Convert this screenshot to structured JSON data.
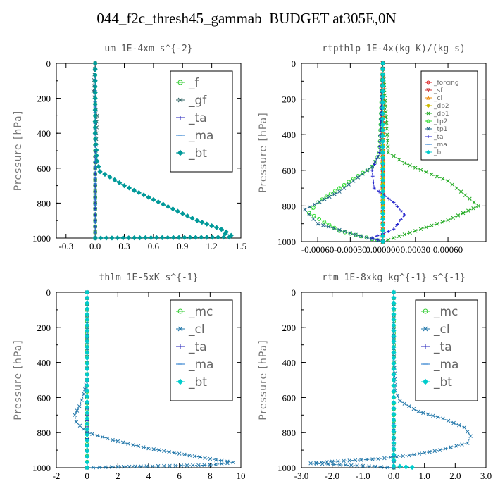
{
  "title": "044_f2c_thresh45_gammab  BUDGET at305E,0N",
  "chart_data": [
    {
      "type": "line",
      "title": "um  1E-4xm s^{-2}",
      "ylabel": "Pressure [hPa]",
      "xlim": [
        -0.4,
        1.5
      ],
      "ylim": [
        1000,
        0
      ],
      "x_ticks": [
        "-0.3",
        "0.0",
        "0.3",
        "0.6",
        "0.9",
        "1.2",
        "1.5"
      ],
      "x_tick_values": [
        -0.3,
        0,
        0.3,
        0.6,
        0.9,
        1.2,
        1.5
      ],
      "y_ticks": [
        "0",
        "200",
        "400",
        "600",
        "800",
        "1000"
      ],
      "y_tick_values": [
        0,
        200,
        400,
        600,
        800,
        1000
      ],
      "legend_position": "top-right",
      "legend_size": "large",
      "series": [
        {
          "name": "_f",
          "color": "#33cc33",
          "marker": "circle",
          "x": [
            0,
            0,
            0,
            0,
            0,
            0
          ],
          "y": [
            0,
            200,
            400,
            600,
            800,
            1000
          ]
        },
        {
          "name": "_gf",
          "color": "#336666",
          "marker": "x",
          "x": [
            0,
            -0.02,
            0.02,
            0,
            0
          ],
          "y": [
            0,
            160,
            300,
            600,
            1000
          ]
        },
        {
          "name": "_ta",
          "color": "#2222bb",
          "marker": "plus",
          "x": [
            0,
            0,
            0,
            0
          ],
          "y": [
            0,
            500,
            900,
            1000
          ]
        },
        {
          "name": "_ma",
          "color": "#2277cc",
          "marker": "dash",
          "x": [
            0,
            0,
            0
          ],
          "y": [
            0,
            500,
            1000
          ]
        },
        {
          "name": "_bt",
          "color": "#009999",
          "marker": "diamond",
          "x": [
            0.0,
            0.0,
            0.0,
            0.02,
            0.05,
            0.15,
            0.3,
            0.45,
            0.6,
            0.75,
            0.9,
            1.05,
            1.2,
            1.3,
            1.35,
            1.34,
            1.4,
            1.38,
            0.0
          ],
          "y": [
            0,
            200,
            400,
            560,
            620,
            650,
            700,
            740,
            780,
            820,
            860,
            900,
            930,
            950,
            965,
            975,
            985,
            995,
            1000
          ]
        }
      ]
    },
    {
      "type": "line",
      "title": "rtpthlp  1E-4x(kg K)/(kg s)",
      "ylabel": "Pressure [hPa]",
      "xlim": [
        -0.00075,
        0.00095
      ],
      "ylim": [
        1000,
        0
      ],
      "x_ticks": [
        "-0.00060",
        "-0.00030",
        "0.000000",
        "0.00030",
        "0.00060"
      ],
      "x_tick_values": [
        -0.0006,
        -0.0003,
        0,
        0.0003,
        0.0006
      ],
      "y_ticks": [
        "0",
        "200",
        "400",
        "600",
        "800",
        "1000"
      ],
      "y_tick_values": [
        0,
        200,
        400,
        600,
        800,
        1000
      ],
      "legend_position": "top-right",
      "legend_size": "small",
      "series": [
        {
          "name": "_forcing",
          "color": "#dd2222",
          "marker": "circle",
          "x": [
            0,
            0,
            0,
            0,
            0,
            0
          ],
          "y": [
            0,
            200,
            400,
            600,
            800,
            1000
          ]
        },
        {
          "name": "_sf",
          "color": "#cc3333",
          "marker": "down",
          "x": [
            0,
            0,
            0,
            0
          ],
          "y": [
            0,
            400,
            800,
            1000
          ]
        },
        {
          "name": "_cl",
          "color": "#ee8800",
          "marker": "up",
          "x": [
            0,
            0,
            0,
            0
          ],
          "y": [
            0,
            400,
            800,
            1000
          ]
        },
        {
          "name": "_dp2",
          "color": "#ccbb00",
          "marker": "diamond",
          "x": [
            0,
            0,
            0,
            0
          ],
          "y": [
            0,
            400,
            800,
            1000
          ]
        },
        {
          "name": "_dp1",
          "color": "#22aa22",
          "marker": "x",
          "x": [
            0,
            3e-05,
            5e-05,
            0.0002,
            0.0006,
            0.00088,
            0.0006,
            0.0003,
            0.0001,
            0
          ],
          "y": [
            0,
            300,
            500,
            560,
            660,
            800,
            880,
            940,
            980,
            1000
          ]
        },
        {
          "name": "_tp2",
          "color": "#33dd33",
          "marker": "circle",
          "x": [
            0,
            -3e-05,
            -0.0001,
            -0.0004,
            -0.0006,
            -0.00068,
            -0.0004,
            -0.0001,
            0
          ],
          "y": [
            0,
            500,
            580,
            700,
            780,
            840,
            940,
            985,
            1000
          ]
        },
        {
          "name": "_tp1",
          "color": "#226688",
          "marker": "x",
          "x": [
            0,
            -2e-05,
            -0.0001,
            -0.0004,
            -0.00072,
            -0.0006,
            -0.0002,
            0
          ],
          "y": [
            0,
            500,
            580,
            720,
            820,
            900,
            970,
            1000
          ]
        },
        {
          "name": "_ta",
          "color": "#2222cc",
          "marker": "plus",
          "x": [
            0,
            -3e-05,
            -0.0001,
            -8e-05,
            0.0001,
            0.0002,
            0.0001,
            -0.0001,
            0
          ],
          "y": [
            0,
            500,
            600,
            700,
            780,
            850,
            930,
            980,
            1000
          ]
        },
        {
          "name": "_ma",
          "color": "#2277cc",
          "marker": "dash",
          "x": [
            0,
            0,
            0
          ],
          "y": [
            0,
            500,
            1000
          ]
        },
        {
          "name": "_bt",
          "color": "#00cccc",
          "marker": "diamond",
          "x": [
            0,
            0,
            0
          ],
          "y": [
            0,
            500,
            1000
          ]
        }
      ]
    },
    {
      "type": "line",
      "title": "thlm  1E-5xK s^{-1}",
      "ylabel": "Pressure [hPa]",
      "xlim": [
        -2,
        10
      ],
      "ylim": [
        1000,
        0
      ],
      "x_ticks": [
        "-2",
        "0",
        "2",
        "4",
        "6",
        "8",
        "10"
      ],
      "x_tick_values": [
        -2,
        0,
        2,
        4,
        6,
        8,
        10
      ],
      "y_ticks": [
        "0",
        "200",
        "400",
        "600",
        "800",
        "1000"
      ],
      "y_tick_values": [
        0,
        200,
        400,
        600,
        800,
        1000
      ],
      "legend_position": "top-right",
      "legend_size": "large",
      "series": [
        {
          "name": "_mc",
          "color": "#33cc33",
          "marker": "circle",
          "x": [
            0,
            0,
            0,
            0,
            0,
            0
          ],
          "y": [
            0,
            200,
            400,
            600,
            800,
            1000
          ]
        },
        {
          "name": "_cl",
          "color": "#2277aa",
          "marker": "x",
          "x": [
            0,
            0,
            0,
            -0.2,
            -0.5,
            -0.8,
            -0.7,
            0,
            2,
            4,
            6,
            8,
            9.5,
            8,
            2,
            0
          ],
          "y": [
            0,
            200,
            500,
            580,
            650,
            700,
            740,
            800,
            850,
            890,
            920,
            950,
            970,
            985,
            995,
            1000
          ]
        },
        {
          "name": "_ta",
          "color": "#2222bb",
          "marker": "plus",
          "x": [
            0,
            0,
            0,
            0
          ],
          "y": [
            0,
            500,
            900,
            1000
          ]
        },
        {
          "name": "_ma",
          "color": "#2277cc",
          "marker": "dash",
          "x": [
            0,
            0,
            0
          ],
          "y": [
            0,
            500,
            1000
          ]
        },
        {
          "name": "_bt",
          "color": "#00cccc",
          "marker": "diamond",
          "x": [
            0,
            0,
            0
          ],
          "y": [
            0,
            500,
            1000
          ]
        }
      ]
    },
    {
      "type": "line",
      "title": "rtm  1E-8xkg kg^{-1} s^{-1}",
      "ylabel": "Pressure [hPa]",
      "xlim": [
        -3,
        3
      ],
      "ylim": [
        1000,
        0
      ],
      "x_ticks": [
        "-3.0",
        "-2.0",
        "-1.0",
        "0.0",
        "1.0",
        "2.0",
        "3.0"
      ],
      "x_tick_values": [
        -3,
        -2,
        -1,
        0,
        1,
        2,
        3
      ],
      "y_ticks": [
        "0",
        "200",
        "400",
        "600",
        "800",
        "1000"
      ],
      "y_tick_values": [
        0,
        200,
        400,
        600,
        800,
        1000
      ],
      "legend_position": "top-right",
      "legend_size": "large",
      "series": [
        {
          "name": "_mc",
          "color": "#33cc33",
          "marker": "circle",
          "x": [
            0,
            0,
            0,
            0,
            0,
            0
          ],
          "y": [
            0,
            200,
            400,
            600,
            800,
            1000
          ]
        },
        {
          "name": "_cl",
          "color": "#2277aa",
          "marker": "x",
          "x": [
            0,
            0,
            0.05,
            0.2,
            0.8,
            1.6,
            2.3,
            2.5,
            2.4,
            1.5,
            0.5,
            -0.5,
            -2.0,
            -2.7,
            -1.0,
            0
          ],
          "y": [
            0,
            300,
            560,
            620,
            680,
            720,
            770,
            820,
            860,
            900,
            930,
            950,
            965,
            975,
            990,
            1000
          ]
        },
        {
          "name": "_ta",
          "color": "#2222bb",
          "marker": "plus",
          "x": [
            0,
            0,
            0,
            0
          ],
          "y": [
            0,
            500,
            900,
            1000
          ]
        },
        {
          "name": "_ma",
          "color": "#2277cc",
          "marker": "dash",
          "x": [
            0,
            0,
            0
          ],
          "y": [
            0,
            500,
            1000
          ]
        },
        {
          "name": "_bt",
          "color": "#00cccc",
          "marker": "diamond",
          "x": [
            0,
            0,
            0,
            0.6
          ],
          "y": [
            0,
            500,
            990,
            998
          ]
        }
      ]
    }
  ]
}
